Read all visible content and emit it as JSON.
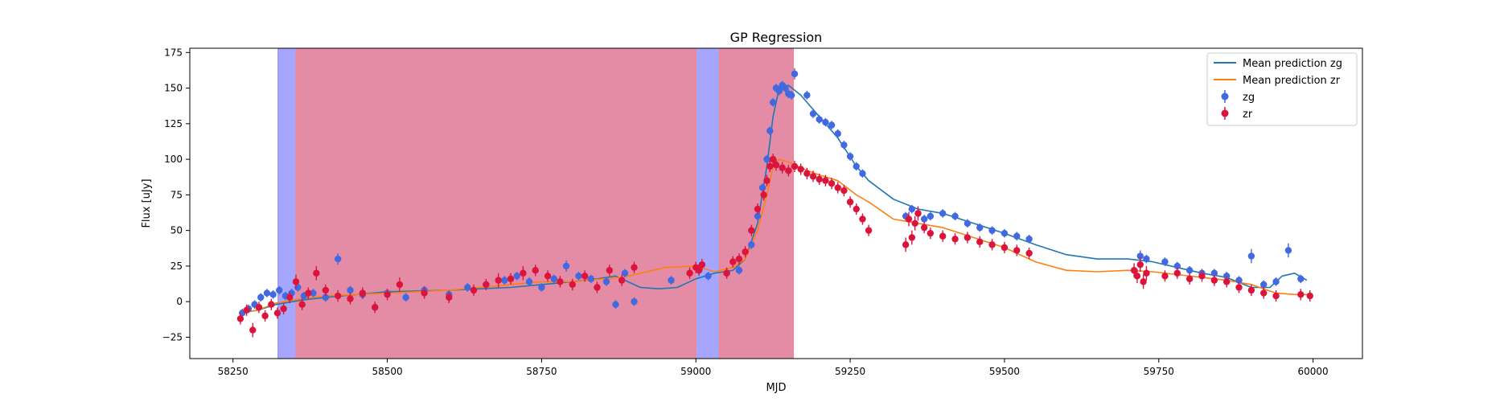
{
  "chart_data": {
    "type": "line",
    "title": "GP Regression",
    "xlabel": "MJD",
    "ylabel": "Flux [uJy]",
    "xlim": [
      58180,
      60080
    ],
    "ylim": [
      -40,
      178
    ],
    "xticks": [
      58250,
      58500,
      58750,
      59000,
      59250,
      59500,
      59750,
      60000
    ],
    "yticks": [
      -25,
      0,
      25,
      50,
      75,
      100,
      125,
      150,
      175
    ],
    "legend_position": "upper right",
    "colors": {
      "zg_line": "#1f77b4",
      "zr_line": "#ff7f0e",
      "zg_points": "#4169e1",
      "zr_points": "#dc143c",
      "blue_span": "#8080ff",
      "red_span": "#ff8080",
      "overlap_span": "#c36ba7"
    },
    "legend": [
      {
        "label": "Mean prediction zg",
        "kind": "line",
        "color": "#1f77b4"
      },
      {
        "label": "Mean prediction zr",
        "kind": "line",
        "color": "#ff7f0e"
      },
      {
        "label": "zg",
        "kind": "errorbar",
        "color": "#4169e1"
      },
      {
        "label": "zr",
        "kind": "errorbar",
        "color": "#dc143c"
      }
    ],
    "shaded_regions": {
      "zg": [
        [
          58323,
          59158
        ]
      ],
      "zr": [
        [
          58352,
          59000
        ],
        [
          59038,
          59158
        ]
      ]
    },
    "series": [
      {
        "name": "Mean prediction zg",
        "kind": "line",
        "x": [
          58260,
          58290,
          58320,
          58360,
          58400,
          58450,
          58500,
          58550,
          58600,
          58650,
          58700,
          58750,
          58800,
          58840,
          58870,
          58890,
          58910,
          58940,
          58970,
          59000,
          59030,
          59060,
          59080,
          59100,
          59115,
          59125,
          59135,
          59150,
          59170,
          59200,
          59230,
          59260,
          59280,
          59320,
          59360,
          59400,
          59450,
          59500,
          59550,
          59600,
          59650,
          59700,
          59740,
          59780,
          59820,
          59860,
          59900,
          59930,
          59950,
          59970,
          59990
        ],
        "y": [
          -8,
          -6,
          -2,
          1,
          3,
          5,
          7,
          7.5,
          8,
          9,
          10,
          12,
          14,
          16,
          18,
          14,
          10,
          9,
          10,
          16,
          20,
          22,
          30,
          55,
          95,
          130,
          150,
          152,
          145,
          130,
          115,
          95,
          85,
          72,
          65,
          62,
          55,
          48,
          40,
          33,
          30,
          30,
          28,
          24,
          20,
          17,
          10,
          10,
          18,
          20,
          15
        ]
      },
      {
        "name": "Mean prediction zr",
        "kind": "line",
        "x": [
          58260,
          58290,
          58320,
          58360,
          58400,
          58450,
          58500,
          58550,
          58600,
          58650,
          58700,
          58750,
          58800,
          58850,
          58880,
          58910,
          58950,
          59000,
          59030,
          59060,
          59080,
          59100,
          59115,
          59125,
          59135,
          59150,
          59170,
          59200,
          59230,
          59260,
          59280,
          59320,
          59360,
          59400,
          59450,
          59500,
          59550,
          59600,
          59650,
          59700,
          59740,
          59780,
          59820,
          59860,
          59900,
          59940,
          59970,
          59995
        ],
        "y": [
          -8,
          -6,
          -1,
          2,
          4,
          5,
          6,
          7,
          8,
          10,
          12,
          14,
          14,
          16,
          17,
          20,
          24,
          25,
          21,
          24,
          30,
          50,
          75,
          95,
          100,
          98,
          94,
          89,
          85,
          75,
          70,
          58,
          55,
          52,
          45,
          38,
          28,
          22,
          21,
          22,
          21,
          19,
          17,
          15,
          12,
          6,
          5,
          5
        ]
      },
      {
        "name": "zg",
        "kind": "errorbar",
        "x": [
          58265,
          58275,
          58285,
          58295,
          58305,
          58315,
          58325,
          58335,
          58345,
          58355,
          58365,
          58380,
          58400,
          58420,
          58440,
          58460,
          58480,
          58500,
          58530,
          58560,
          58600,
          58630,
          58660,
          58690,
          58710,
          58730,
          58750,
          58770,
          58790,
          58810,
          58830,
          58855,
          58870,
          58885,
          58900,
          58960,
          59020,
          59050,
          59070,
          59090,
          59100,
          59108,
          59115,
          59120,
          59125,
          59130,
          59135,
          59140,
          59145,
          59150,
          59155,
          59160,
          59180,
          59190,
          59200,
          59210,
          59220,
          59230,
          59240,
          59250,
          59260,
          59270,
          59340,
          59350,
          59360,
          59370,
          59380,
          59400,
          59420,
          59440,
          59460,
          59480,
          59500,
          59520,
          59540,
          59720,
          59730,
          59760,
          59780,
          59800,
          59820,
          59840,
          59860,
          59880,
          59900,
          59920,
          59940,
          59960,
          59980
        ],
        "y": [
          -8,
          -5,
          -2,
          3,
          6,
          5,
          8,
          4,
          6,
          10,
          4,
          6,
          3,
          30,
          8,
          5,
          -4,
          6,
          3,
          8,
          5,
          10,
          12,
          15,
          18,
          14,
          10,
          16,
          25,
          18,
          16,
          14,
          -2,
          20,
          0,
          15,
          18,
          20,
          22,
          40,
          60,
          80,
          100,
          120,
          140,
          150,
          148,
          152,
          150,
          146,
          145,
          160,
          145,
          132,
          128,
          126,
          124,
          118,
          110,
          102,
          95,
          90,
          60,
          65,
          62,
          58,
          60,
          62,
          60,
          55,
          52,
          50,
          48,
          46,
          44,
          32,
          30,
          28,
          25,
          22,
          20,
          20,
          18,
          15,
          32,
          12,
          14,
          36,
          16
        ],
        "err": [
          3,
          3,
          3,
          3,
          3,
          3,
          3,
          3,
          3,
          3,
          3,
          3,
          3,
          4,
          3,
          3,
          3,
          3,
          3,
          3,
          3,
          3,
          3,
          3,
          3,
          3,
          3,
          3,
          4,
          3,
          3,
          3,
          3,
          3,
          3,
          3,
          3,
          3,
          3,
          3,
          3,
          3,
          3,
          3,
          3,
          3,
          3,
          3,
          3,
          3,
          3,
          4,
          3,
          3,
          3,
          3,
          3,
          3,
          3,
          3,
          3,
          3,
          3,
          3,
          3,
          3,
          3,
          3,
          3,
          3,
          3,
          3,
          3,
          3,
          3,
          4,
          3,
          3,
          3,
          3,
          3,
          3,
          3,
          3,
          5,
          3,
          3,
          5,
          3
        ]
      },
      {
        "name": "zr",
        "kind": "errorbar",
        "x": [
          58262,
          58272,
          58282,
          58292,
          58302,
          58312,
          58322,
          58332,
          58342,
          58352,
          58362,
          58372,
          58385,
          58400,
          58420,
          58440,
          58460,
          58480,
          58500,
          58520,
          58560,
          58600,
          58640,
          58660,
          58680,
          58700,
          58720,
          58740,
          58760,
          58780,
          58800,
          58820,
          58840,
          58860,
          58880,
          58900,
          58990,
          59000,
          59005,
          59010,
          59050,
          59060,
          59070,
          59080,
          59090,
          59100,
          59110,
          59115,
          59120,
          59125,
          59130,
          59140,
          59150,
          59160,
          59170,
          59180,
          59190,
          59200,
          59210,
          59220,
          59230,
          59240,
          59250,
          59260,
          59270,
          59280,
          59340,
          59345,
          59350,
          59355,
          59360,
          59370,
          59380,
          59400,
          59420,
          59440,
          59460,
          59480,
          59500,
          59520,
          59540,
          59710,
          59715,
          59720,
          59725,
          59730,
          59760,
          59780,
          59800,
          59820,
          59840,
          59860,
          59880,
          59900,
          59920,
          59940,
          59980,
          59995
        ],
        "y": [
          -12,
          -6,
          -20,
          -4,
          -10,
          -2,
          -8,
          -5,
          3,
          14,
          -2,
          6,
          20,
          8,
          4,
          2,
          6,
          -4,
          5,
          12,
          6,
          3,
          8,
          12,
          15,
          16,
          20,
          22,
          18,
          14,
          12,
          18,
          10,
          22,
          15,
          24,
          20,
          24,
          22,
          26,
          20,
          28,
          30,
          35,
          50,
          65,
          75,
          85,
          95,
          100,
          96,
          94,
          92,
          95,
          93,
          90,
          88,
          86,
          85,
          83,
          80,
          78,
          70,
          65,
          58,
          50,
          40,
          58,
          45,
          55,
          62,
          52,
          48,
          46,
          44,
          45,
          42,
          40,
          38,
          36,
          34,
          22,
          18,
          26,
          14,
          20,
          18,
          20,
          16,
          18,
          15,
          14,
          10,
          8,
          6,
          4,
          5,
          4
        ],
        "err": [
          4,
          4,
          5,
          4,
          4,
          4,
          4,
          4,
          4,
          5,
          4,
          4,
          5,
          4,
          4,
          4,
          4,
          4,
          4,
          5,
          4,
          4,
          4,
          4,
          5,
          4,
          5,
          4,
          4,
          4,
          4,
          4,
          4,
          4,
          4,
          4,
          4,
          4,
          4,
          4,
          4,
          4,
          4,
          4,
          4,
          4,
          4,
          4,
          4,
          4,
          4,
          4,
          4,
          4,
          4,
          4,
          4,
          4,
          4,
          4,
          4,
          4,
          4,
          4,
          4,
          4,
          5,
          5,
          5,
          5,
          5,
          4,
          4,
          4,
          4,
          4,
          4,
          4,
          4,
          4,
          4,
          5,
          5,
          5,
          5,
          5,
          4,
          4,
          4,
          4,
          4,
          4,
          4,
          4,
          4,
          4,
          4,
          4
        ]
      }
    ]
  }
}
